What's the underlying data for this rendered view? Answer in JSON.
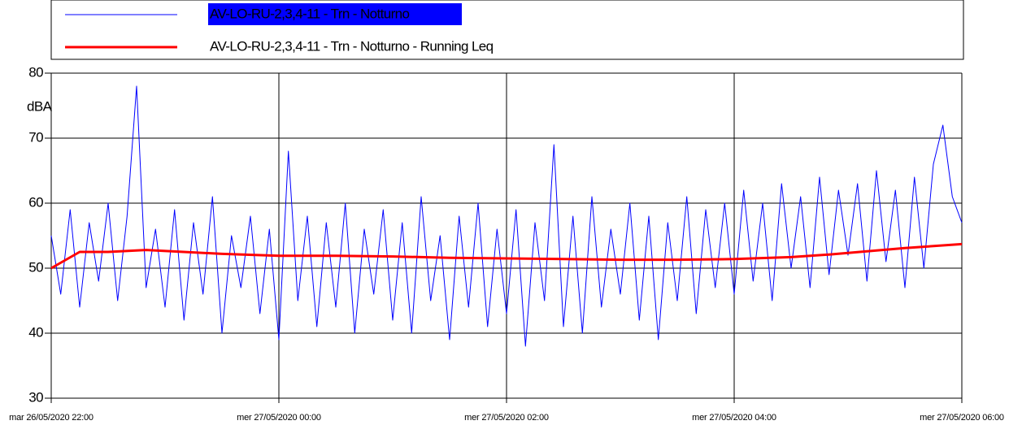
{
  "chart_data": {
    "type": "line",
    "ylabel": "dBA",
    "ylim": [
      30,
      80
    ],
    "yticks": [
      30,
      40,
      50,
      60,
      70,
      80
    ],
    "xlim": [
      "26/05/2020 22:00",
      "27/05/2020 06:00"
    ],
    "xticks": [
      {
        "value": "26/05/2020 22:00",
        "label": "mar 26/05/2020 22:00"
      },
      {
        "value": "27/05/2020 00:00",
        "label": "mer 27/05/2020 00:00"
      },
      {
        "value": "27/05/2020 02:00",
        "label": "mer 27/05/2020 02:00"
      },
      {
        "value": "27/05/2020 04:00",
        "label": "mer 27/05/2020 04:00"
      },
      {
        "value": "27/05/2020 06:00",
        "label": "mer 27/05/2020 06:00"
      }
    ],
    "grid": true,
    "legend": "top",
    "series": [
      {
        "name": "AV-LO-RU-2,3,4-11 - Trn - Notturno",
        "color": "#0000ff",
        "x": [
          "26/05/2020 22:00",
          "26/05/2020 22:05",
          "26/05/2020 22:10",
          "26/05/2020 22:15",
          "26/05/2020 22:20",
          "26/05/2020 22:25",
          "26/05/2020 22:30",
          "26/05/2020 22:35",
          "26/05/2020 22:40",
          "26/05/2020 22:45",
          "26/05/2020 22:50",
          "26/05/2020 22:55",
          "26/05/2020 23:00",
          "26/05/2020 23:05",
          "26/05/2020 23:10",
          "26/05/2020 23:15",
          "26/05/2020 23:20",
          "26/05/2020 23:25",
          "26/05/2020 23:30",
          "26/05/2020 23:35",
          "26/05/2020 23:40",
          "26/05/2020 23:45",
          "26/05/2020 23:50",
          "26/05/2020 23:55",
          "27/05/2020 00:00",
          "27/05/2020 00:05",
          "27/05/2020 00:10",
          "27/05/2020 00:15",
          "27/05/2020 00:20",
          "27/05/2020 00:25",
          "27/05/2020 00:30",
          "27/05/2020 00:35",
          "27/05/2020 00:40",
          "27/05/2020 00:45",
          "27/05/2020 00:50",
          "27/05/2020 00:55",
          "27/05/2020 01:00",
          "27/05/2020 01:05",
          "27/05/2020 01:10",
          "27/05/2020 01:15",
          "27/05/2020 01:20",
          "27/05/2020 01:25",
          "27/05/2020 01:30",
          "27/05/2020 01:35",
          "27/05/2020 01:40",
          "27/05/2020 01:45",
          "27/05/2020 01:50",
          "27/05/2020 01:55",
          "27/05/2020 02:00",
          "27/05/2020 02:05",
          "27/05/2020 02:10",
          "27/05/2020 02:15",
          "27/05/2020 02:20",
          "27/05/2020 02:25",
          "27/05/2020 02:30",
          "27/05/2020 02:35",
          "27/05/2020 02:40",
          "27/05/2020 02:45",
          "27/05/2020 02:50",
          "27/05/2020 02:55",
          "27/05/2020 03:00",
          "27/05/2020 03:05",
          "27/05/2020 03:10",
          "27/05/2020 03:15",
          "27/05/2020 03:20",
          "27/05/2020 03:25",
          "27/05/2020 03:30",
          "27/05/2020 03:35",
          "27/05/2020 03:40",
          "27/05/2020 03:45",
          "27/05/2020 03:50",
          "27/05/2020 03:55",
          "27/05/2020 04:00",
          "27/05/2020 04:05",
          "27/05/2020 04:10",
          "27/05/2020 04:15",
          "27/05/2020 04:20",
          "27/05/2020 04:25",
          "27/05/2020 04:30",
          "27/05/2020 04:35",
          "27/05/2020 04:40",
          "27/05/2020 04:45",
          "27/05/2020 04:50",
          "27/05/2020 04:55",
          "27/05/2020 05:00",
          "27/05/2020 05:05",
          "27/05/2020 05:10",
          "27/05/2020 05:15",
          "27/05/2020 05:20",
          "27/05/2020 05:25",
          "27/05/2020 05:30",
          "27/05/2020 05:35",
          "27/05/2020 05:40",
          "27/05/2020 05:45",
          "27/05/2020 05:50",
          "27/05/2020 05:55",
          "27/05/2020 06:00"
        ],
        "values": [
          55,
          46,
          59,
          44,
          57,
          48,
          60,
          45,
          58,
          78,
          47,
          56,
          44,
          59,
          42,
          57,
          46,
          61,
          40,
          55,
          47,
          58,
          43,
          56,
          39,
          68,
          45,
          58,
          41,
          57,
          44,
          60,
          40,
          56,
          46,
          59,
          42,
          57,
          40,
          61,
          45,
          55,
          39,
          58,
          44,
          60,
          41,
          56,
          43,
          59,
          38,
          57,
          45,
          69,
          41,
          58,
          40,
          61,
          44,
          56,
          46,
          60,
          42,
          58,
          39,
          57,
          45,
          61,
          43,
          59,
          47,
          60,
          46,
          62,
          48,
          60,
          45,
          63,
          50,
          61,
          47,
          64,
          49,
          62,
          52,
          63,
          48,
          65,
          51,
          62,
          47,
          64,
          50,
          66,
          72,
          61,
          57
        ]
      },
      {
        "name": "AV-LO-RU-2,3,4-11 - Trn - Notturno - Running Leq",
        "color": "#ff0000",
        "x": [
          "26/05/2020 22:00",
          "26/05/2020 22:15",
          "26/05/2020 22:30",
          "26/05/2020 22:50",
          "26/05/2020 23:30",
          "27/05/2020 00:00",
          "27/05/2020 00:30",
          "27/05/2020 01:00",
          "27/05/2020 01:30",
          "27/05/2020 02:00",
          "27/05/2020 02:30",
          "27/05/2020 03:00",
          "27/05/2020 03:30",
          "27/05/2020 04:00",
          "27/05/2020 04:30",
          "27/05/2020 04:50",
          "27/05/2020 05:10",
          "27/05/2020 05:30",
          "27/05/2020 06:00"
        ],
        "values": [
          50,
          52.5,
          52.5,
          52.8,
          52.2,
          51.9,
          51.9,
          51.8,
          51.6,
          51.5,
          51.4,
          51.3,
          51.3,
          51.4,
          51.7,
          52.1,
          52.6,
          53.1,
          53.7
        ]
      }
    ]
  }
}
